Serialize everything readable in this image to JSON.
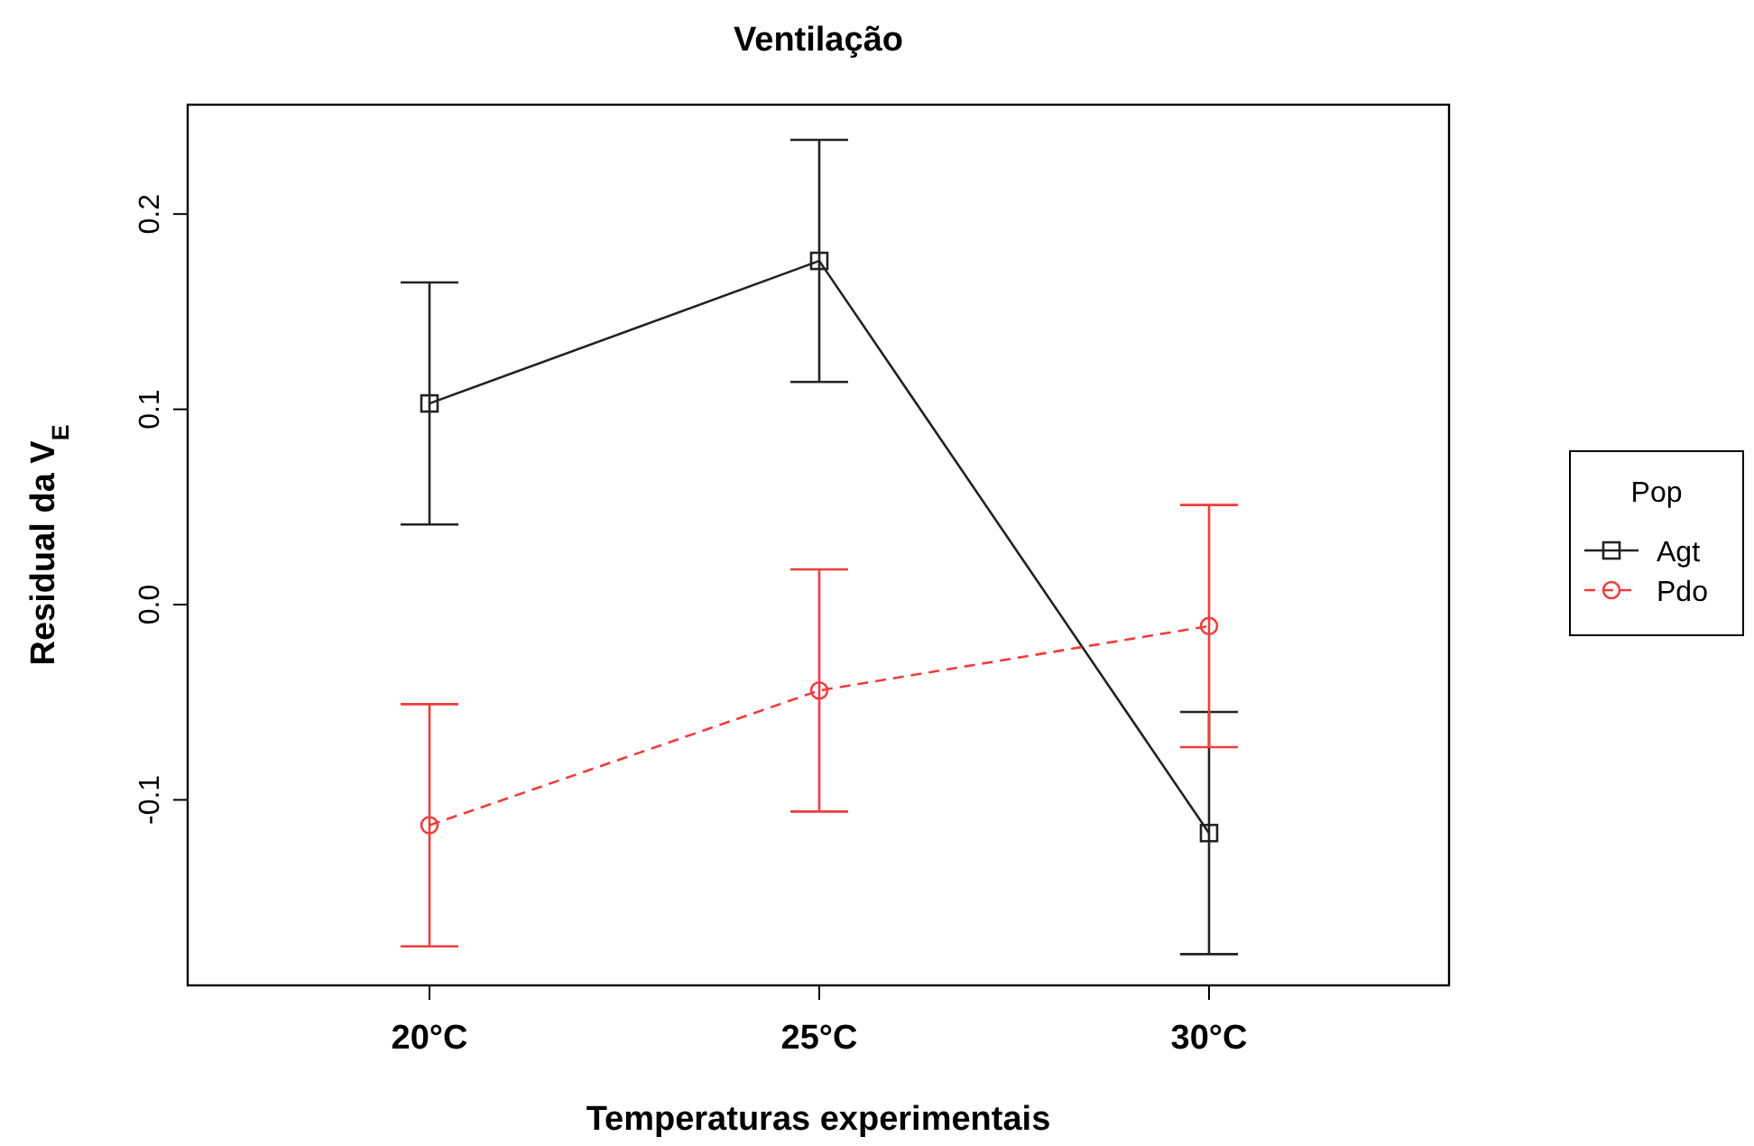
{
  "chart_data": {
    "type": "line",
    "title": "Ventilação",
    "xlabel": "Temperaturas experimentais",
    "ylabel": "Residual da V$_{E}$",
    "legend_title": "Pop",
    "legend": "right",
    "categories": [
      "20°C",
      "25°C",
      "30°C"
    ],
    "ylim": [
      -0.195,
      0.256
    ],
    "yticks": [
      -0.1,
      {
        "value": 0,
        "label": "0.0"
      },
      0.1,
      0.2
    ],
    "grid": false,
    "series": [
      {
        "name": "Agt",
        "color": "#222222",
        "values": [
          0.103,
          0.176,
          -0.117
        ],
        "errors": [
          0.062,
          0.062,
          0.062
        ],
        "marker": "square",
        "line_style": "solid"
      },
      {
        "name": "Pdo",
        "color": "#f03c3c",
        "values": [
          -0.113,
          -0.044,
          -0.011
        ],
        "errors": [
          0.062,
          0.062,
          0.062
        ],
        "marker": "circle",
        "line_style": "dashed"
      }
    ]
  }
}
